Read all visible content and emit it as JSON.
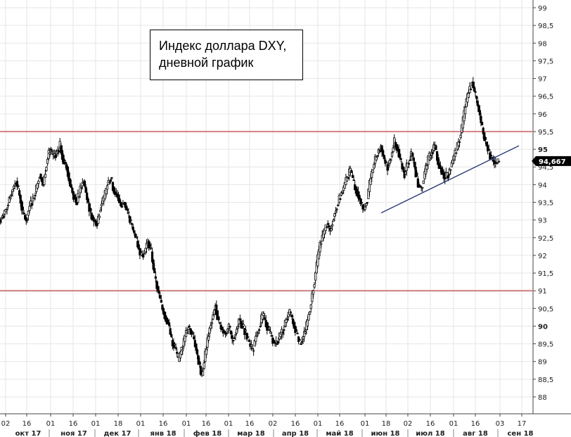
{
  "chart_data": {
    "type": "candlestick",
    "title_lines": [
      "Индекс доллара DXY,",
      "дневной график"
    ],
    "ylim": [
      88.0,
      99.2
    ],
    "y_ticks": [
      "88",
      "88,5",
      "89",
      "89,5",
      "90",
      "90,5",
      "91",
      "91,5",
      "92",
      "92,5",
      "93",
      "93,5",
      "94",
      "94,5",
      "95",
      "95,5",
      "96",
      "96,5",
      "97",
      "97,5",
      "98",
      "98,5",
      "99"
    ],
    "y_ticks_bold": [
      "90",
      "95"
    ],
    "last_price_label": "94,667",
    "last_price": 94.667,
    "x_day_ticks": [
      "02",
      "16",
      "01",
      "16",
      "01",
      "18",
      "01",
      "16",
      "01",
      "16",
      "01",
      "16",
      "02",
      "16",
      "01",
      "16",
      "01",
      "18",
      "02",
      "16",
      "01",
      "16",
      "03",
      "17"
    ],
    "x_month_labels": [
      "окт 17",
      "ноя 17",
      "дек 17",
      "янв 18",
      "фев 18",
      "мар 18",
      "апр 18",
      "май 18",
      "июн 18",
      "июл 18",
      "авг 18",
      "сен 18"
    ],
    "horizontal_levels": [
      {
        "value": 95.5,
        "color": "#d62020"
      },
      {
        "value": 91.0,
        "color": "#d62020"
      }
    ],
    "trendline": {
      "start": {
        "date": "июн 18",
        "value": 93.2
      },
      "end": {
        "date": "сен 18",
        "value": 95.1
      },
      "color": "#1a2a8a"
    },
    "candle_color": "#000000",
    "series_close": [
      93.1,
      93.3,
      93.6,
      93.9,
      94.1,
      93.7,
      93.2,
      93.0,
      93.4,
      93.6,
      93.9,
      94.3,
      94.0,
      94.6,
      95.0,
      94.8,
      94.9,
      95.1,
      94.7,
      94.5,
      94.0,
      93.7,
      93.5,
      93.9,
      94.1,
      93.6,
      93.2,
      93.0,
      92.9,
      93.4,
      93.6,
      94.0,
      94.2,
      93.8,
      93.7,
      93.4,
      93.5,
      93.2,
      92.9,
      92.6,
      92.3,
      92.0,
      92.1,
      92.4,
      92.1,
      91.4,
      91.0,
      90.6,
      90.3,
      90.1,
      89.6,
      89.4,
      89.0,
      89.3,
      89.7,
      90.0,
      89.8,
      89.5,
      89.0,
      88.6,
      89.2,
      89.8,
      90.2,
      90.6,
      90.1,
      89.9,
      89.8,
      90.0,
      89.6,
      89.8,
      90.2,
      90.0,
      89.8,
      89.5,
      89.3,
      89.7,
      90.0,
      90.3,
      90.1,
      89.8,
      89.6,
      89.5,
      89.7,
      89.9,
      90.2,
      90.4,
      90.1,
      89.8,
      89.5,
      89.7,
      90.0,
      90.5,
      91.1,
      91.7,
      92.3,
      92.6,
      92.9,
      92.7,
      93.1,
      93.4,
      93.7,
      93.9,
      94.2,
      94.4,
      94.0,
      93.8,
      93.5,
      93.3,
      93.6,
      94.2,
      94.6,
      94.9,
      95.1,
      94.7,
      94.5,
      94.8,
      95.2,
      95.0,
      94.6,
      94.3,
      94.6,
      94.9,
      94.5,
      94.0,
      93.9,
      94.3,
      94.7,
      94.9,
      95.1,
      94.6,
      94.4,
      94.2,
      94.3,
      94.6,
      94.9,
      95.2,
      95.6,
      96.2,
      96.6,
      96.9,
      96.5,
      96.1,
      95.6,
      95.2,
      94.9,
      94.7,
      94.6,
      94.667
    ]
  }
}
